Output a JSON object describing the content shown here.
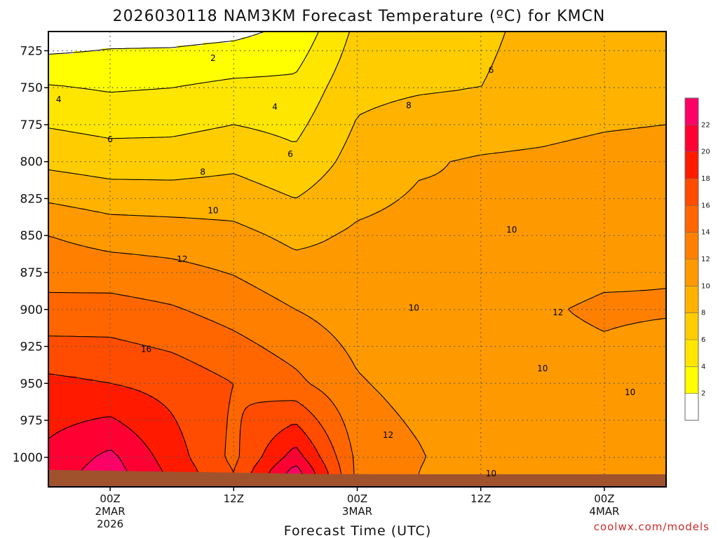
{
  "chart_data": {
    "type": "heatmap",
    "title": "2026030118 NAM3KM Forecast Temperature (ºC) for KMCN",
    "xlabel": "Forecast Time (UTC)",
    "credit": "coolwx.com/models",
    "y_axis": {
      "ticks": [
        725,
        750,
        775,
        800,
        825,
        850,
        875,
        900,
        925,
        950,
        975,
        1000
      ],
      "range": [
        712,
        1020
      ],
      "inverted": true
    },
    "x_axis": {
      "range_hours": [
        -6,
        54
      ],
      "ticks": [
        {
          "hour": 0,
          "lines": [
            "00Z",
            "2MAR",
            "2026"
          ]
        },
        {
          "hour": 12,
          "lines": [
            "12Z"
          ]
        },
        {
          "hour": 24,
          "lines": [
            "00Z",
            "3MAR"
          ]
        },
        {
          "hour": 36,
          "lines": [
            "12Z"
          ]
        },
        {
          "hour": 48,
          "lines": [
            "00Z",
            "4MAR"
          ]
        }
      ]
    },
    "grid": true,
    "colorbar": {
      "levels": [
        0,
        2,
        4,
        6,
        8,
        10,
        12,
        14,
        16,
        18,
        20,
        22,
        24
      ],
      "labels": [
        2,
        4,
        6,
        8,
        10,
        12,
        14,
        16,
        18,
        20,
        22
      ],
      "colors": [
        "#ffffff",
        "#ffff00",
        "#ffe600",
        "#ffcc00",
        "#ffb300",
        "#ff9900",
        "#ff8000",
        "#ff6600",
        "#ff4c00",
        "#ff1a00",
        "#ff0033",
        "#ff0066"
      ]
    },
    "surface_color": "#a0522d",
    "sample_grid": {
      "hours": [
        -6,
        0,
        6,
        12,
        18,
        24,
        30,
        36,
        42,
        48,
        54
      ],
      "levels": [
        712,
        750,
        800,
        850,
        900,
        950,
        1000,
        1010
      ],
      "temperatures": [
        [
          0.5,
          1.2,
          1.2,
          1.5,
          2.5,
          6.5,
          7.5,
          7.8,
          8.3,
          8.7,
          9.0
        ],
        [
          4.2,
          3.8,
          4.0,
          4.5,
          4.5,
          7.5,
          7.8,
          8.0,
          8.4,
          8.8,
          9.0
        ],
        [
          7.5,
          7.0,
          7.0,
          7.5,
          6.5,
          8.8,
          9.8,
          10.2,
          10.4,
          10.8,
          11.0
        ],
        [
          12.0,
          11.2,
          11.0,
          10.6,
          9.5,
          10.3,
          10.6,
          10.0,
          10.7,
          11.0,
          11.5
        ],
        [
          14.6,
          14.8,
          14.2,
          13.2,
          12.0,
          11.0,
          10.7,
          11.0,
          11.8,
          12.3,
          12.2
        ],
        [
          18.5,
          18.0,
          17.3,
          16.0,
          14.5,
          12.2,
          11.2,
          10.4,
          11.2,
          11.3,
          10.5
        ],
        [
          20.5,
          22.5,
          19.0,
          15.5,
          21.0,
          13.5,
          12.2,
          10.5,
          10.4,
          10.3,
          10.2
        ],
        [
          21.0,
          23.0,
          19.5,
          16.0,
          23.0,
          13.5,
          12.0,
          10.0,
          10.2,
          10.3,
          10.2
        ]
      ]
    },
    "contour_labels": [
      {
        "text": "2",
        "hour": 10.0,
        "p": 730
      },
      {
        "text": "4",
        "hour": -5.0,
        "p": 758
      },
      {
        "text": "4",
        "hour": 16.0,
        "p": 763
      },
      {
        "text": "6",
        "hour": 0.0,
        "p": 785
      },
      {
        "text": "6",
        "hour": 17.5,
        "p": 795
      },
      {
        "text": "6",
        "hour": 37.0,
        "p": 738
      },
      {
        "text": "8",
        "hour": 9.0,
        "p": 807
      },
      {
        "text": "8",
        "hour": 29.0,
        "p": 762
      },
      {
        "text": "10",
        "hour": 10.0,
        "p": 833
      },
      {
        "text": "10",
        "hour": 39.0,
        "p": 846
      },
      {
        "text": "10",
        "hour": 29.5,
        "p": 899
      },
      {
        "text": "10",
        "hour": 42.0,
        "p": 940
      },
      {
        "text": "10",
        "hour": 50.5,
        "p": 956
      },
      {
        "text": "10",
        "hour": 37.0,
        "p": 1011
      },
      {
        "text": "12",
        "hour": 7.0,
        "p": 866
      },
      {
        "text": "12",
        "hour": 43.5,
        "p": 902
      },
      {
        "text": "12",
        "hour": 27.0,
        "p": 985
      },
      {
        "text": "16",
        "hour": 3.5,
        "p": 927
      }
    ]
  }
}
